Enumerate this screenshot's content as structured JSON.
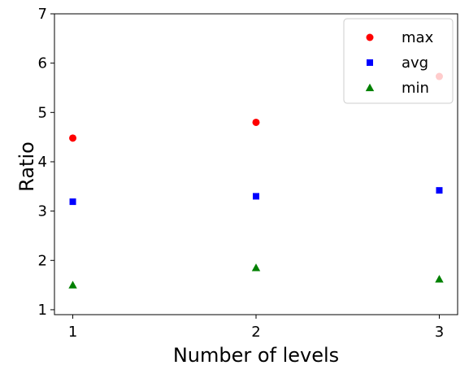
{
  "chart_data": {
    "type": "scatter",
    "title": "",
    "xlabel": "Number of levels",
    "ylabel": "Ratio",
    "x": [
      1,
      2,
      3
    ],
    "xticks": [
      "1",
      "2",
      "3"
    ],
    "xlim": [
      0.9,
      3.1
    ],
    "ylim": [
      0.9,
      7.0
    ],
    "yticks": [
      "1",
      "2",
      "3",
      "4",
      "5",
      "6",
      "7"
    ],
    "grid": false,
    "legend_position": "top-right",
    "series": [
      {
        "name": "max",
        "marker": "circle",
        "color": "#ff0000",
        "values": [
          4.48,
          4.8,
          5.73
        ]
      },
      {
        "name": "avg",
        "marker": "square",
        "color": "#0000ff",
        "values": [
          3.19,
          3.3,
          3.42
        ]
      },
      {
        "name": "min",
        "marker": "triangle",
        "color": "#008000",
        "values": [
          1.5,
          1.85,
          1.62
        ]
      }
    ]
  }
}
